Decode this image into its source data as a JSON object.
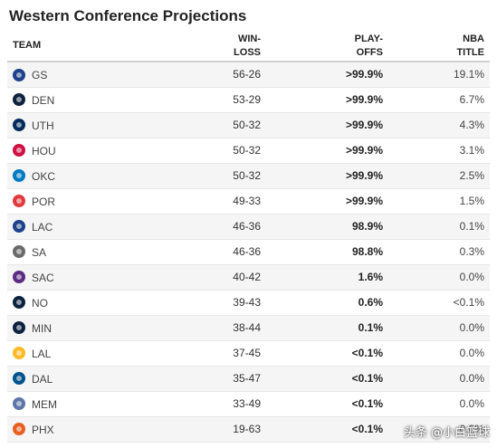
{
  "title": "Western Conference Projections",
  "headers": {
    "team": "TEAM",
    "winloss_line1": "WIN-",
    "winloss_line2": "LOSS",
    "playoffs_line1": "PLAY-",
    "playoffs_line2": "OFFS",
    "title_line1": "NBA",
    "title_line2": "TITLE"
  },
  "rows": [
    {
      "team": "GS",
      "logo_color": "#1d428a",
      "win_loss": "56-26",
      "playoffs": ">99.9%",
      "title": "19.1%"
    },
    {
      "team": "DEN",
      "logo_color": "#0e2240",
      "win_loss": "53-29",
      "playoffs": ">99.9%",
      "title": "6.7%"
    },
    {
      "team": "UTH",
      "logo_color": "#002b5c",
      "win_loss": "50-32",
      "playoffs": ">99.9%",
      "title": "4.3%"
    },
    {
      "team": "HOU",
      "logo_color": "#ce1141",
      "win_loss": "50-32",
      "playoffs": ">99.9%",
      "title": "3.1%"
    },
    {
      "team": "OKC",
      "logo_color": "#007ac1",
      "win_loss": "50-32",
      "playoffs": ">99.9%",
      "title": "2.5%"
    },
    {
      "team": "POR",
      "logo_color": "#e03a3e",
      "win_loss": "49-33",
      "playoffs": ">99.9%",
      "title": "1.5%"
    },
    {
      "team": "LAC",
      "logo_color": "#1d428a",
      "win_loss": "46-36",
      "playoffs": "98.9%",
      "title": "0.1%"
    },
    {
      "team": "SA",
      "logo_color": "#6b6b6b",
      "win_loss": "46-36",
      "playoffs": "98.8%",
      "title": "0.3%"
    },
    {
      "team": "SAC",
      "logo_color": "#5a2d81",
      "win_loss": "40-42",
      "playoffs": "1.6%",
      "title": "0.0%"
    },
    {
      "team": "NO",
      "logo_color": "#0c2340",
      "win_loss": "39-43",
      "playoffs": "0.6%",
      "title": "<0.1%"
    },
    {
      "team": "MIN",
      "logo_color": "#0c2340",
      "win_loss": "38-44",
      "playoffs": "0.1%",
      "title": "0.0%"
    },
    {
      "team": "LAL",
      "logo_color": "#fdb927",
      "win_loss": "37-45",
      "playoffs": "<0.1%",
      "title": "0.0%"
    },
    {
      "team": "DAL",
      "logo_color": "#00538c",
      "win_loss": "35-47",
      "playoffs": "<0.1%",
      "title": "0.0%"
    },
    {
      "team": "MEM",
      "logo_color": "#5d76a9",
      "win_loss": "33-49",
      "playoffs": "<0.1%",
      "title": "0.0%"
    },
    {
      "team": "PHX",
      "logo_color": "#e56020",
      "win_loss": "19-63",
      "playoffs": "<0.1%",
      "title": "0.0%"
    }
  ],
  "watermark": "头条 @小白篮球"
}
